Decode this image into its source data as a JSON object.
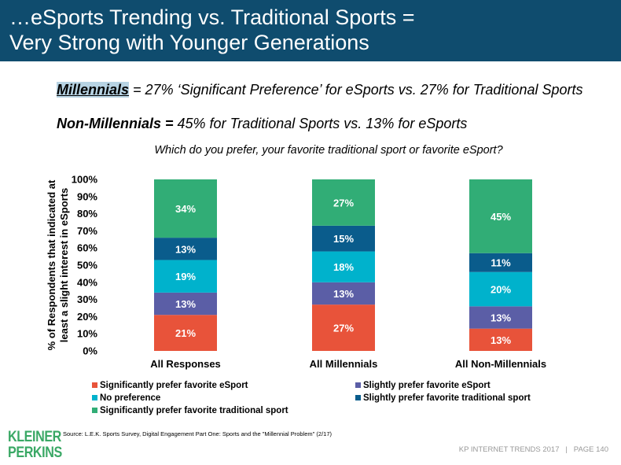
{
  "header": {
    "title_line1": "…eSports Trending vs. Traditional Sports =",
    "title_line2": "Very Strong with Younger Generations"
  },
  "highlights": {
    "line1_bold": "Millennials",
    "line1_rest": " = 27% ‘Significant Preference’ for eSports vs. 27% for Traditional Sports",
    "line2_bold": "Non-Millennials =",
    "line2_rest": " 45% for Traditional Sports vs. 13% for eSports"
  },
  "chart_data": {
    "type": "bar",
    "stacked": true,
    "title": "Which do you prefer, your favorite traditional sport or favorite eSport?",
    "ylabel": "% of Respondents that indicated at least a slight interest in eSports",
    "ylabel_line1": "% of Respondents that indicated at",
    "ylabel_line2": "least a slight interest in eSports",
    "xlabel": "",
    "ylim": [
      0,
      100
    ],
    "yticks": [
      "0%",
      "10%",
      "20%",
      "30%",
      "40%",
      "50%",
      "60%",
      "70%",
      "80%",
      "90%",
      "100%"
    ],
    "grid": false,
    "legend_position": "bottom",
    "categories": [
      "All Responses",
      "All Millennials",
      "All Non-Millennials"
    ],
    "series": [
      {
        "name": "Significantly prefer favorite eSport",
        "color": "#e8533a",
        "values": [
          21,
          27,
          13
        ]
      },
      {
        "name": "Slightly prefer favorite eSport",
        "color": "#5b5ea6",
        "values": [
          13,
          13,
          13
        ]
      },
      {
        "name": "No preference",
        "color": "#00b2cc",
        "values": [
          19,
          18,
          20
        ]
      },
      {
        "name": "Slightly prefer favorite traditional sport",
        "color": "#0a5c8c",
        "values": [
          13,
          15,
          11
        ]
      },
      {
        "name": "Significantly prefer favorite traditional sport",
        "color": "#31ad76",
        "values": [
          34,
          27,
          45
        ]
      }
    ]
  },
  "footer": {
    "source": "Source: L.E.K. Sports Survey, Digital Engagement Part One: Sports and the \"Millennial Problem\" (2/17)",
    "logo_line1": "KLEINER",
    "logo_line2": "PERKINS",
    "page": "KP INTERNET TRENDS 2017   |   PAGE 140"
  }
}
